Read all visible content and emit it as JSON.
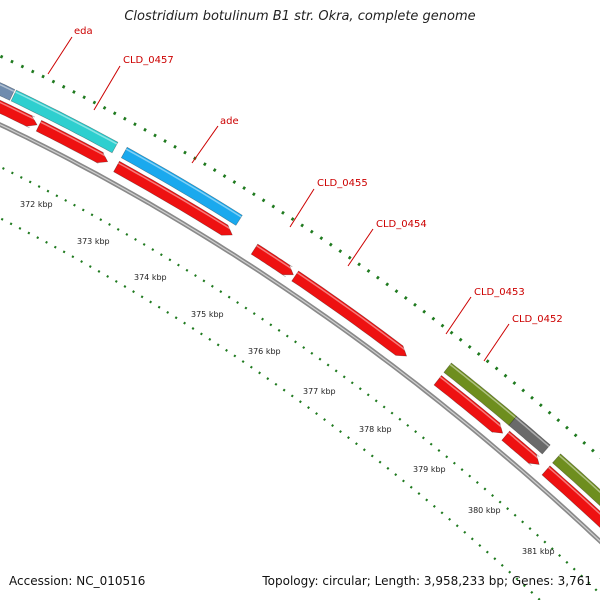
{
  "title": "Clostridium botulinum B1 str. Okra, complete genome",
  "accession": "Accession: NC_010516",
  "topology": "Topology: circular; Length: 3,958,233 bp; Genes: 3,761",
  "colors": {
    "cds": "#ee1111",
    "cyan": "#2ecfcf",
    "blue": "#1aa9ee",
    "olive": "#6e8e1e",
    "gray": "#6a6a6a",
    "slate": "#6f8cae",
    "tick": "#1f7a1f",
    "backbone": "#8a8a8a",
    "label": "#cc0000"
  },
  "ticks": [
    "372 kbp",
    "373 kbp",
    "374 kbp",
    "375 kbp",
    "376 kbp",
    "377 kbp",
    "378 kbp",
    "379 kbp",
    "380 kbp",
    "381 kbp"
  ],
  "genes": [
    {
      "label": "eda"
    },
    {
      "label": "CLD_0457"
    },
    {
      "label": "ade"
    },
    {
      "label": "CLD_0455"
    },
    {
      "label": "CLD_0454"
    },
    {
      "label": "CLD_0453"
    },
    {
      "label": "CLD_0452"
    }
  ]
}
